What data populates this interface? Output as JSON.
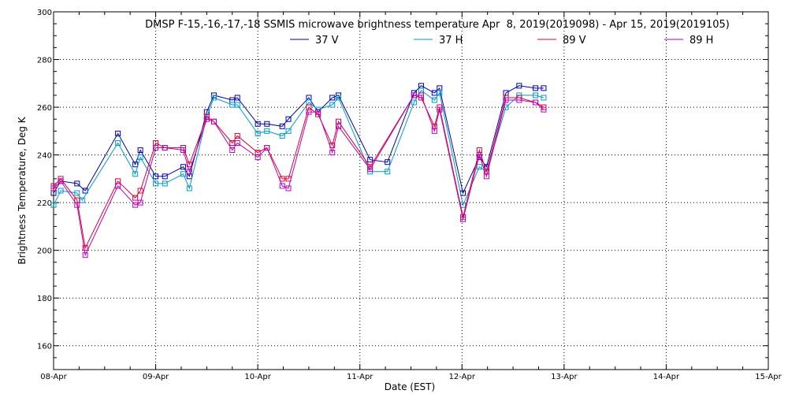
{
  "chart_data": {
    "type": "line",
    "title": "DMSP F-15,-16,-17,-18 SSMIS microwave brightness temperature Apr  8, 2019(2019098) - Apr 15, 2019(2019105)",
    "xlabel": "Date (EST)",
    "ylabel": "Brightness Temperature, Deg K",
    "xlim": [
      0,
      7
    ],
    "ylim": [
      150,
      300
    ],
    "x_ticks": [
      0,
      1,
      2,
      3,
      4,
      5,
      6,
      7
    ],
    "x_tick_labels": [
      "08-Apr",
      "09-Apr",
      "10-Apr",
      "11-Apr",
      "12-Apr",
      "13-Apr",
      "14-Apr",
      "15-Apr"
    ],
    "y_ticks": [
      160,
      180,
      200,
      220,
      240,
      260,
      280,
      300
    ],
    "y_tick_labels": [
      "160",
      "180",
      "200",
      "220",
      "240",
      "260",
      "280",
      "300"
    ],
    "grid": true,
    "legend_position": "top-center",
    "series": [
      {
        "name": "37 V",
        "color": "#0000aa",
        "points": [
          [
            0.0,
            224
          ],
          [
            0.07,
            229
          ],
          [
            0.23,
            228
          ],
          [
            0.31,
            225
          ],
          [
            0.63,
            249
          ],
          [
            0.8,
            236
          ],
          [
            0.85,
            242
          ],
          [
            1.0,
            231
          ],
          [
            1.09,
            231
          ],
          [
            1.27,
            235
          ],
          [
            1.33,
            231
          ],
          [
            1.5,
            258
          ],
          [
            1.57,
            265
          ],
          [
            1.75,
            263
          ],
          [
            1.8,
            264
          ],
          [
            2.0,
            253
          ],
          [
            2.09,
            253
          ],
          [
            2.24,
            252
          ],
          [
            2.3,
            255
          ],
          [
            2.5,
            264
          ],
          [
            2.59,
            258
          ],
          [
            2.73,
            264
          ],
          [
            2.79,
            265
          ],
          [
            3.1,
            238
          ],
          [
            3.27,
            237
          ],
          [
            3.53,
            266
          ],
          [
            3.6,
            269
          ],
          [
            3.73,
            266
          ],
          [
            3.78,
            268
          ],
          [
            4.01,
            224
          ],
          [
            4.17,
            239
          ],
          [
            4.24,
            235
          ],
          [
            4.43,
            266
          ],
          [
            4.56,
            269
          ],
          [
            4.72,
            268
          ],
          [
            4.8,
            268
          ]
        ]
      },
      {
        "name": "37 H",
        "color": "#0099cc",
        "points": [
          [
            0.0,
            219
          ],
          [
            0.07,
            225
          ],
          [
            0.23,
            224
          ],
          [
            0.28,
            221
          ],
          [
            0.63,
            245
          ],
          [
            0.8,
            232
          ],
          [
            0.85,
            239
          ],
          [
            1.0,
            228
          ],
          [
            1.09,
            228
          ],
          [
            1.27,
            232
          ],
          [
            1.33,
            226
          ],
          [
            1.5,
            256
          ],
          [
            1.57,
            264
          ],
          [
            1.75,
            261
          ],
          [
            1.8,
            261
          ],
          [
            2.0,
            249
          ],
          [
            2.09,
            250
          ],
          [
            2.24,
            248
          ],
          [
            2.3,
            250
          ],
          [
            2.5,
            262
          ],
          [
            2.59,
            259
          ],
          [
            2.73,
            261
          ],
          [
            2.79,
            264
          ],
          [
            3.1,
            233
          ],
          [
            3.27,
            233
          ],
          [
            3.53,
            262
          ],
          [
            3.6,
            267
          ],
          [
            3.73,
            263
          ],
          [
            3.78,
            266
          ],
          [
            4.01,
            219
          ],
          [
            4.17,
            235
          ],
          [
            4.24,
            233
          ],
          [
            4.43,
            260
          ],
          [
            4.56,
            265
          ],
          [
            4.72,
            265
          ],
          [
            4.8,
            264
          ]
        ]
      },
      {
        "name": "89 V",
        "color": "#dd0033",
        "points": [
          [
            0.0,
            227
          ],
          [
            0.07,
            230
          ],
          [
            0.23,
            221
          ],
          [
            0.31,
            201
          ],
          [
            0.63,
            229
          ],
          [
            0.8,
            222
          ],
          [
            0.85,
            225
          ],
          [
            1.0,
            245
          ],
          [
            1.09,
            243
          ],
          [
            1.27,
            243
          ],
          [
            1.33,
            236
          ],
          [
            1.5,
            256
          ],
          [
            1.57,
            254
          ],
          [
            1.75,
            245
          ],
          [
            1.8,
            248
          ],
          [
            2.0,
            241
          ],
          [
            2.09,
            243
          ],
          [
            2.24,
            230
          ],
          [
            2.3,
            230
          ],
          [
            2.5,
            260
          ],
          [
            2.59,
            257
          ],
          [
            2.73,
            244
          ],
          [
            2.79,
            254
          ],
          [
            3.1,
            235
          ],
          [
            3.53,
            265
          ],
          [
            3.6,
            264
          ],
          [
            3.73,
            252
          ],
          [
            3.78,
            260
          ],
          [
            4.01,
            214
          ],
          [
            4.17,
            242
          ],
          [
            4.24,
            233
          ],
          [
            4.43,
            264
          ],
          [
            4.56,
            264
          ],
          [
            4.72,
            262
          ],
          [
            4.8,
            260
          ]
        ]
      },
      {
        "name": "89 H",
        "color": "#bb00bb",
        "points": [
          [
            0.0,
            226
          ],
          [
            0.07,
            229
          ],
          [
            0.23,
            219
          ],
          [
            0.31,
            198
          ],
          [
            0.63,
            227
          ],
          [
            0.8,
            219
          ],
          [
            0.85,
            220
          ],
          [
            1.0,
            243
          ],
          [
            1.09,
            243
          ],
          [
            1.27,
            242
          ],
          [
            1.33,
            233
          ],
          [
            1.5,
            255
          ],
          [
            1.57,
            254
          ],
          [
            1.75,
            242
          ],
          [
            1.8,
            245
          ],
          [
            2.0,
            239
          ],
          [
            2.09,
            243
          ],
          [
            2.24,
            227
          ],
          [
            2.3,
            226
          ],
          [
            2.5,
            258
          ],
          [
            2.59,
            258
          ],
          [
            2.73,
            241
          ],
          [
            2.79,
            252
          ],
          [
            3.1,
            234
          ],
          [
            3.53,
            265
          ],
          [
            3.6,
            265
          ],
          [
            3.73,
            250
          ],
          [
            3.78,
            259
          ],
          [
            4.01,
            213
          ],
          [
            4.17,
            240
          ],
          [
            4.24,
            231
          ],
          [
            4.43,
            263
          ],
          [
            4.56,
            263
          ],
          [
            4.72,
            262
          ],
          [
            4.8,
            259
          ]
        ]
      }
    ]
  }
}
